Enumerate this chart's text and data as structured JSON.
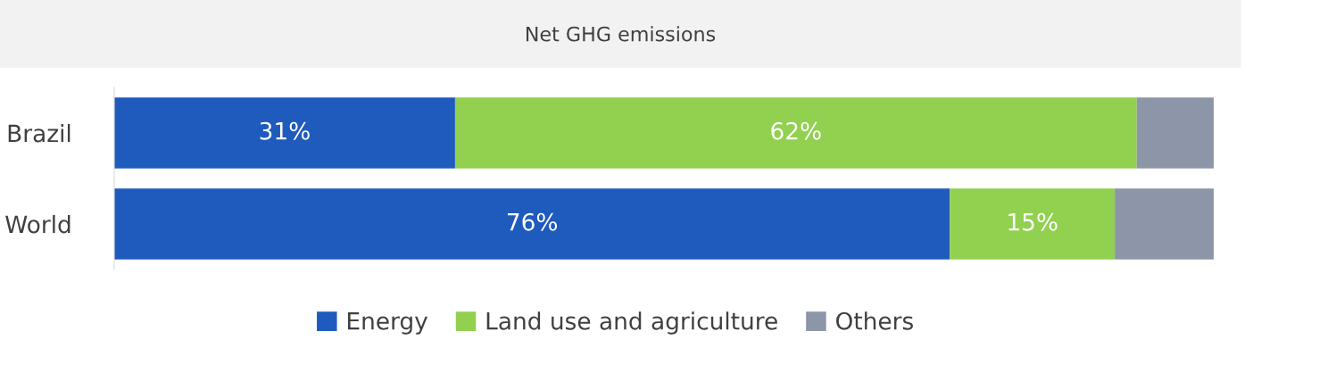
{
  "chart_data": {
    "type": "bar",
    "orientation": "horizontal",
    "stacked": true,
    "title": "Net GHG emissions",
    "categories": [
      "Brazil",
      "World"
    ],
    "series": [
      {
        "name": "Energy",
        "color": "#1f5bbd",
        "values": [
          31,
          76
        ],
        "value_labels": [
          "31%",
          "76%"
        ]
      },
      {
        "name": "Land use and agriculture",
        "color": "#92d050",
        "values": [
          62,
          15
        ],
        "value_labels": [
          "62%",
          "15%"
        ]
      },
      {
        "name": "Others",
        "color": "#8c96a8",
        "values": [
          7,
          9
        ],
        "value_labels": [
          null,
          null
        ]
      }
    ],
    "xlim": [
      0,
      100
    ],
    "tick_labels": "y",
    "grid": false,
    "legend": "bottom"
  }
}
